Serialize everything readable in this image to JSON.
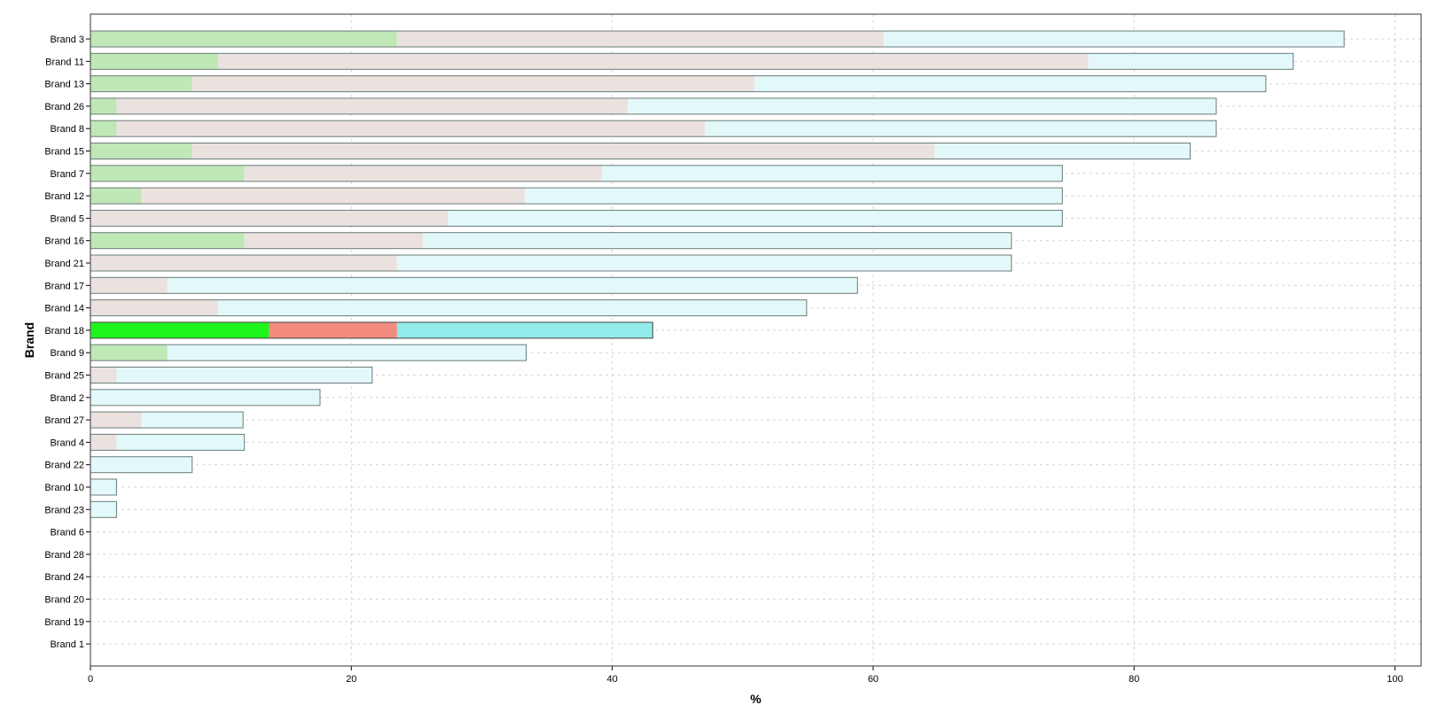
{
  "chart_data": {
    "type": "bar",
    "orientation": "horizontal",
    "stacked": true,
    "xlabel": "%",
    "ylabel": "Brand",
    "xlim": [
      0,
      102
    ],
    "xticks": [
      0,
      20,
      40,
      60,
      80,
      100
    ],
    "grid": true,
    "highlight_category": "Brand 18",
    "categories": [
      "Brand 3",
      "Brand 11",
      "Brand 13",
      "Brand 26",
      "Brand 8",
      "Brand 15",
      "Brand 7",
      "Brand 12",
      "Brand 5",
      "Brand 16",
      "Brand 21",
      "Brand 17",
      "Brand 14",
      "Brand 18",
      "Brand 9",
      "Brand 25",
      "Brand 2",
      "Brand 27",
      "Brand 4",
      "Brand 22",
      "Brand 10",
      "Brand 23",
      "Brand 6",
      "Brand 28",
      "Brand 24",
      "Brand 20",
      "Brand 19",
      "Brand 1"
    ],
    "series": [
      {
        "colors": {
          "normal": "#bfe8b6",
          "highlight": "#1df51d"
        },
        "values": [
          23.5,
          9.8,
          7.8,
          2.0,
          2.0,
          7.8,
          11.8,
          3.9,
          0,
          11.8,
          0,
          0,
          0,
          13.7,
          5.9,
          0,
          0,
          0,
          0,
          0,
          0,
          0,
          0,
          0,
          0,
          0,
          0,
          0
        ]
      },
      {
        "colors": {
          "normal": "#ebe2df",
          "highlight": "#f28a7e"
        },
        "values": [
          37.3,
          66.7,
          43.1,
          39.2,
          45.1,
          56.9,
          27.4,
          29.4,
          27.4,
          13.7,
          23.5,
          5.9,
          9.8,
          9.8,
          0,
          2.0,
          0,
          3.9,
          2.0,
          0,
          0,
          0,
          0,
          0,
          0,
          0,
          0,
          0
        ]
      },
      {
        "colors": {
          "normal": "#e3f8f8",
          "highlight": "#92eaea"
        },
        "values": [
          35.3,
          15.7,
          39.2,
          45.1,
          39.2,
          19.6,
          35.3,
          41.2,
          47.1,
          45.1,
          47.1,
          52.9,
          45.1,
          19.6,
          27.5,
          19.6,
          17.6,
          7.8,
          9.8,
          7.8,
          2.0,
          2.0,
          0,
          0,
          0,
          0,
          0,
          0
        ]
      }
    ]
  }
}
